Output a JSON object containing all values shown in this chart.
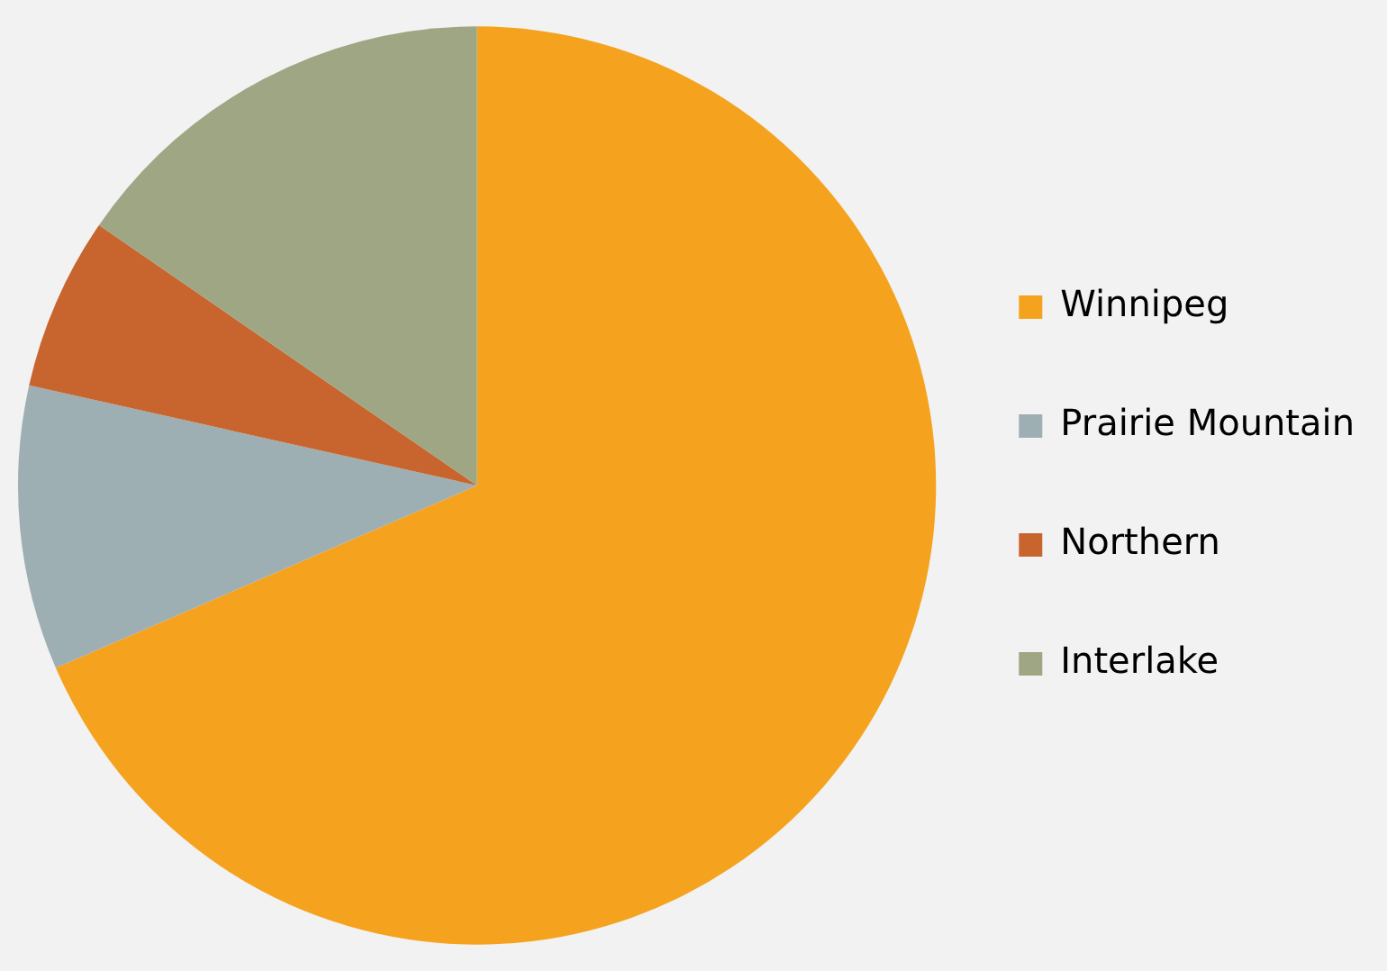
{
  "chart_data": {
    "type": "pie",
    "categories": [
      "Winnipeg",
      "Prairie Mountain",
      "Northern",
      "Interlake"
    ],
    "values": [
      68.5,
      10.0,
      6.1,
      15.4
    ],
    "colors": [
      "#f5a31f",
      "#9eafb3",
      "#c8652e",
      "#9ea683"
    ],
    "legend": "right"
  }
}
